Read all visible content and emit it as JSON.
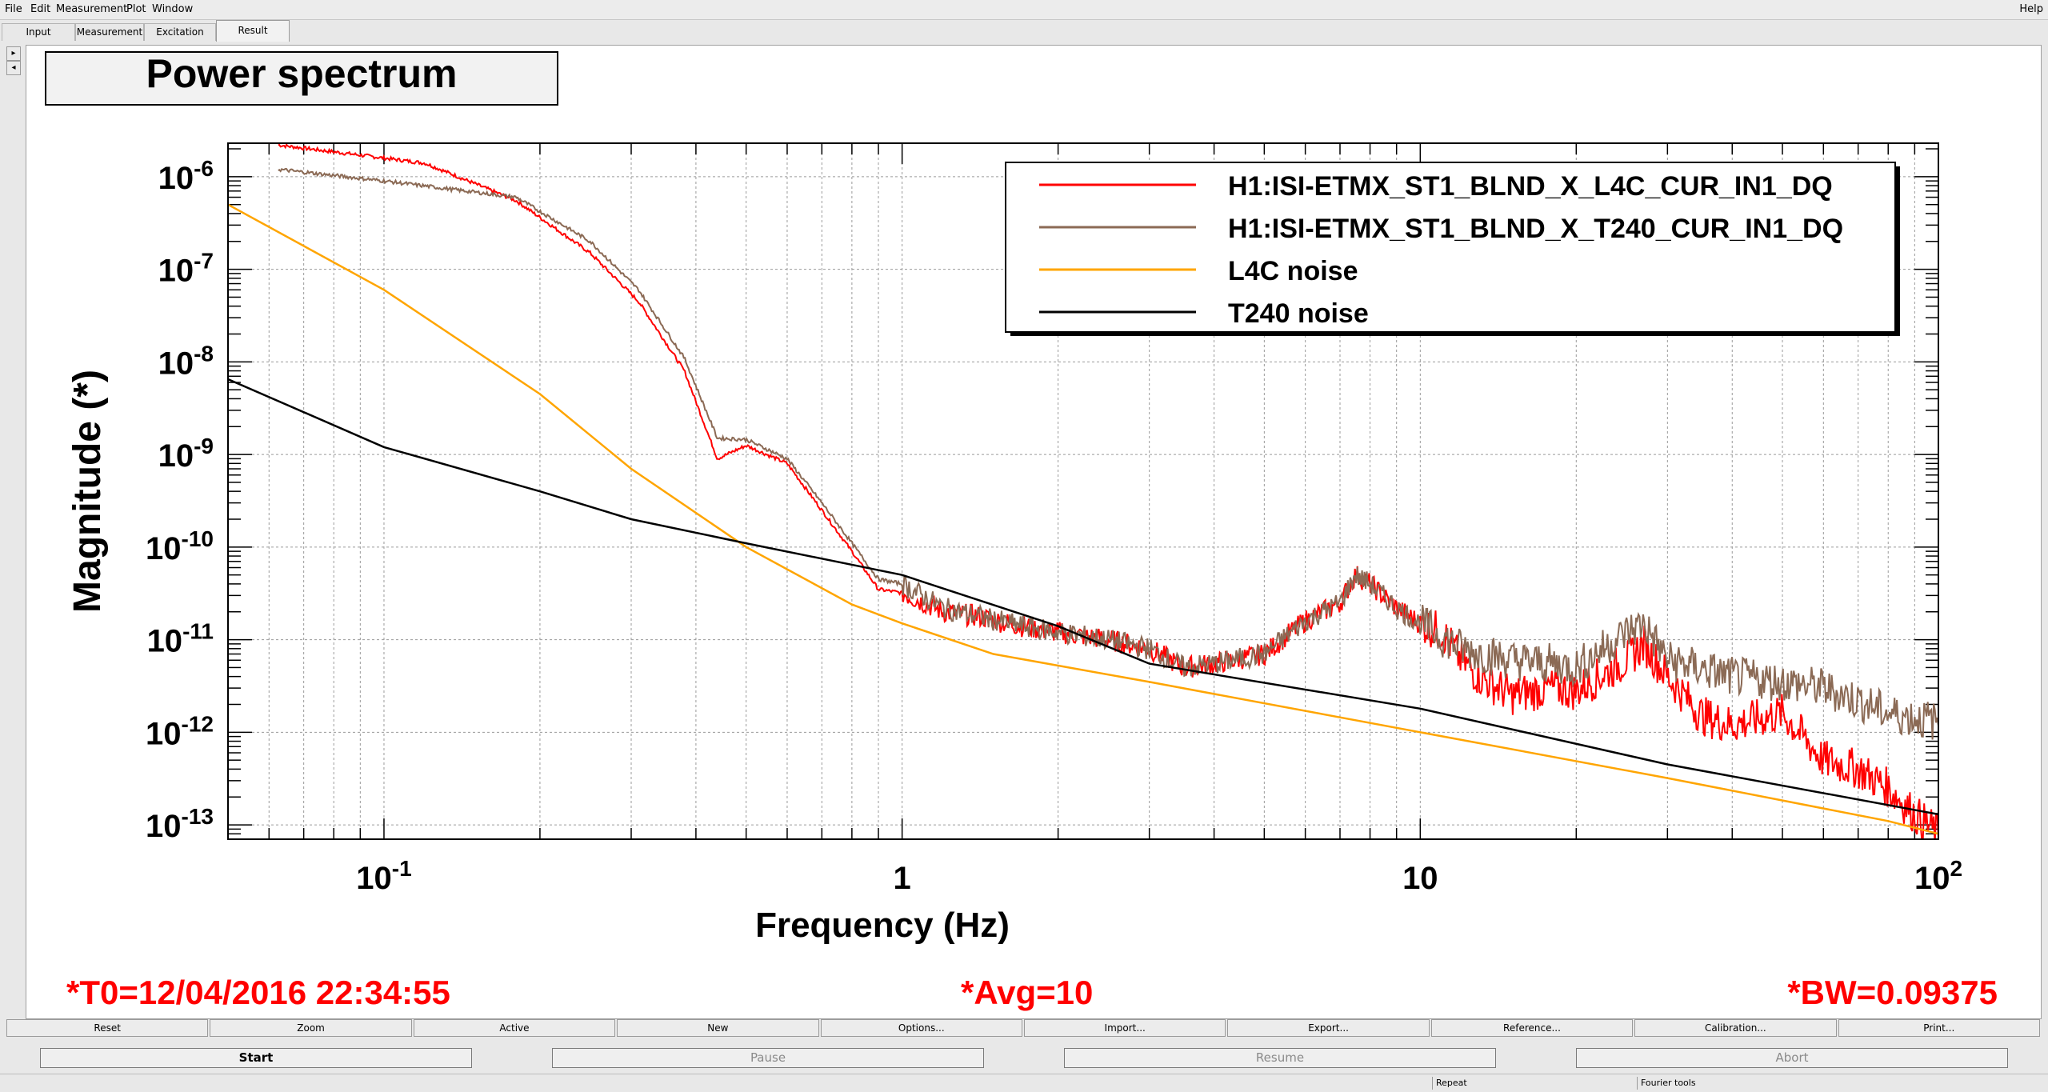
{
  "menubar": {
    "items": [
      "File",
      "Edit",
      "Measurement",
      "Plot",
      "Window"
    ],
    "help": "Help"
  },
  "tabs": [
    {
      "label": "Input",
      "active": false
    },
    {
      "label": "Measurement",
      "active": false
    },
    {
      "label": "Excitation",
      "active": false
    },
    {
      "label": "Result",
      "active": true
    }
  ],
  "side_toggles": [
    "▸",
    "◂"
  ],
  "plot": {
    "title": "Power spectrum",
    "status": {
      "t0": "*T0=12/04/2016 22:34:55",
      "avg": "*Avg=10",
      "bw": "*BW=0.09375"
    }
  },
  "chart_data": {
    "type": "line",
    "xlabel": "Frequency (Hz)",
    "ylabel": "Magnitude (*)",
    "xscale": "log",
    "yscale": "log",
    "xlim": [
      0.05,
      100
    ],
    "ylim": [
      7e-14,
      2.3e-06
    ],
    "x_ticks": [
      {
        "base": "10",
        "exp": "-1",
        "value": 0.1
      },
      {
        "base": "1",
        "exp": "",
        "value": 1
      },
      {
        "base": "10",
        "exp": "",
        "value": 10
      },
      {
        "base": "10",
        "exp": "2",
        "value": 100
      }
    ],
    "y_ticks": [
      {
        "base": "10",
        "exp": "-6",
        "value": 1e-06
      },
      {
        "base": "10",
        "exp": "-7",
        "value": 1e-07
      },
      {
        "base": "10",
        "exp": "-8",
        "value": 1e-08
      },
      {
        "base": "10",
        "exp": "-9",
        "value": 1e-09
      },
      {
        "base": "10",
        "exp": "-10",
        "value": 1e-10
      },
      {
        "base": "10",
        "exp": "-11",
        "value": 1e-11
      },
      {
        "base": "10",
        "exp": "-12",
        "value": 1e-12
      },
      {
        "base": "10",
        "exp": "-13",
        "value": 1e-13
      }
    ],
    "grid": true,
    "legend_position": "top-right",
    "series": [
      {
        "name": "H1:ISI-ETMX_ST1_BLND_X_L4C_CUR_IN1_DQ",
        "color": "#ff0000",
        "noisy": true,
        "points": [
          [
            0.0625,
            2.2e-06
          ],
          [
            0.12,
            1.4e-06
          ],
          [
            0.18,
            5.5e-07
          ],
          [
            0.25,
            1.5e-07
          ],
          [
            0.31,
            4.5e-08
          ],
          [
            0.38,
            8e-09
          ],
          [
            0.44,
            9e-10
          ],
          [
            0.5,
            1.25e-09
          ],
          [
            0.6,
            8e-10
          ],
          [
            0.7,
            2.5e-10
          ],
          [
            0.8,
            9e-11
          ],
          [
            0.9,
            3.5e-11
          ],
          [
            1.0,
            3.2e-11
          ],
          [
            1.2,
            2e-11
          ],
          [
            1.4,
            1.8e-11
          ],
          [
            1.6,
            1.5e-11
          ],
          [
            2.0,
            1.2e-11
          ],
          [
            2.5,
            1e-11
          ],
          [
            3.0,
            8e-12
          ],
          [
            3.5,
            5e-12
          ],
          [
            4.0,
            5.5e-12
          ],
          [
            5.0,
            7e-12
          ],
          [
            6.0,
            1.6e-11
          ],
          [
            7.0,
            2.5e-11
          ],
          [
            7.5,
            5e-11
          ],
          [
            8.0,
            4e-11
          ],
          [
            9.0,
            2.2e-11
          ],
          [
            10.0,
            1.5e-11
          ],
          [
            11.0,
            1.2e-11
          ],
          [
            12.0,
            6e-12
          ],
          [
            13.0,
            4e-12
          ],
          [
            15.0,
            2.5e-12
          ],
          [
            18.0,
            3e-12
          ],
          [
            20.0,
            2.8e-12
          ],
          [
            25.0,
            6e-12
          ],
          [
            27.0,
            9e-12
          ],
          [
            30.0,
            4e-12
          ],
          [
            35.0,
            1.5e-12
          ],
          [
            40.0,
            1.2e-12
          ],
          [
            50.0,
            1.6e-12
          ],
          [
            60.0,
            5e-13
          ],
          [
            70.0,
            4e-13
          ],
          [
            80.0,
            2.5e-13
          ],
          [
            90.0,
            1.3e-13
          ],
          [
            100.0,
            8e-14
          ]
        ]
      },
      {
        "name": "H1:ISI-ETMX_ST1_BLND_X_T240_CUR_IN1_DQ",
        "color": "#8b6a55",
        "noisy": true,
        "points": [
          [
            0.0625,
            1.2e-06
          ],
          [
            0.1,
            9e-07
          ],
          [
            0.18,
            6e-07
          ],
          [
            0.25,
            2e-07
          ],
          [
            0.31,
            6e-08
          ],
          [
            0.38,
            1.1e-08
          ],
          [
            0.44,
            1.5e-09
          ],
          [
            0.5,
            1.45e-09
          ],
          [
            0.6,
            9e-10
          ],
          [
            0.7,
            3e-10
          ],
          [
            0.8,
            1.1e-10
          ],
          [
            0.9,
            4.5e-11
          ],
          [
            1.0,
            4e-11
          ],
          [
            1.2,
            2.2e-11
          ],
          [
            1.4,
            1.8e-11
          ],
          [
            1.6,
            1.5e-11
          ],
          [
            2.0,
            1.2e-11
          ],
          [
            2.5,
            1e-11
          ],
          [
            3.0,
            8e-12
          ],
          [
            3.5,
            5e-12
          ],
          [
            4.0,
            5.5e-12
          ],
          [
            5.0,
            7e-12
          ],
          [
            6.0,
            1.6e-11
          ],
          [
            7.0,
            2.5e-11
          ],
          [
            7.5,
            5e-11
          ],
          [
            8.0,
            4e-11
          ],
          [
            9.0,
            2.2e-11
          ],
          [
            10.0,
            1.5e-11
          ],
          [
            12.0,
            8e-12
          ],
          [
            15.0,
            6e-12
          ],
          [
            18.0,
            5.5e-12
          ],
          [
            20.0,
            5e-12
          ],
          [
            25.0,
            1.2e-11
          ],
          [
            27.0,
            1.5e-11
          ],
          [
            30.0,
            6e-12
          ],
          [
            40.0,
            4e-12
          ],
          [
            50.0,
            3.5e-12
          ],
          [
            60.0,
            3e-12
          ],
          [
            70.0,
            2.2e-12
          ],
          [
            80.0,
            1.6e-12
          ],
          [
            100.0,
            1.3e-12
          ]
        ]
      },
      {
        "name": "L4C noise",
        "color": "#ffa500",
        "noisy": false,
        "points": [
          [
            0.05,
            5e-07
          ],
          [
            0.1,
            6e-08
          ],
          [
            0.2,
            4.5e-09
          ],
          [
            0.3,
            7e-10
          ],
          [
            0.5,
            1e-10
          ],
          [
            0.8,
            2.4e-11
          ],
          [
            1.0,
            1.5e-11
          ],
          [
            1.5,
            7e-12
          ],
          [
            3.0,
            3.5e-12
          ],
          [
            10.0,
            1e-12
          ],
          [
            30.0,
            3.2e-13
          ],
          [
            80.0,
            1.1e-13
          ],
          [
            100.0,
            8e-14
          ]
        ]
      },
      {
        "name": "T240 noise",
        "color": "#000000",
        "noisy": false,
        "points": [
          [
            0.05,
            6.5e-09
          ],
          [
            0.1,
            1.2e-09
          ],
          [
            0.2,
            4e-10
          ],
          [
            0.3,
            2e-10
          ],
          [
            0.5,
            1.1e-10
          ],
          [
            1.0,
            5e-11
          ],
          [
            2.0,
            1.4e-11
          ],
          [
            3.0,
            5.5e-12
          ],
          [
            10.0,
            1.8e-12
          ],
          [
            30.0,
            4.5e-13
          ],
          [
            100.0,
            1.3e-13
          ]
        ]
      }
    ]
  },
  "plot_buttons": [
    "Reset",
    "Zoom",
    "Active",
    "New",
    "Options...",
    "Import...",
    "Export...",
    "Reference...",
    "Calibration...",
    "Print..."
  ],
  "control_buttons": [
    {
      "label": "Start",
      "enabled": true
    },
    {
      "label": "Pause",
      "enabled": false
    },
    {
      "label": "Resume",
      "enabled": false
    },
    {
      "label": "Abort",
      "enabled": false
    }
  ],
  "statusbar": {
    "repeat": "Repeat",
    "fourier": "Fourier tools"
  }
}
